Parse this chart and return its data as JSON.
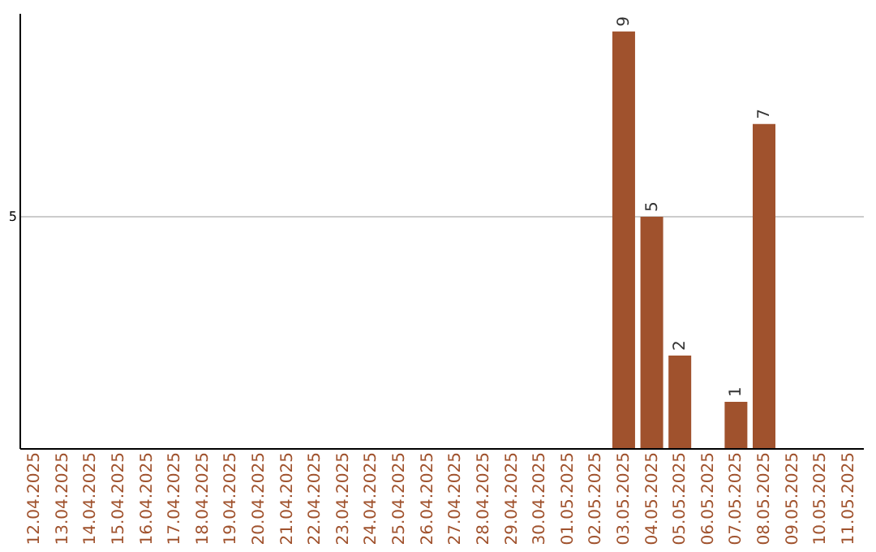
{
  "chart_data": {
    "type": "bar",
    "categories": [
      "12.04.2025",
      "13.04.2025",
      "14.04.2025",
      "15.04.2025",
      "16.04.2025",
      "17.04.2025",
      "18.04.2025",
      "19.04.2025",
      "20.04.2025",
      "21.04.2025",
      "22.04.2025",
      "23.04.2025",
      "24.04.2025",
      "25.04.2025",
      "26.04.2025",
      "27.04.2025",
      "28.04.2025",
      "29.04.2025",
      "30.04.2025",
      "01.05.2025",
      "02.05.2025",
      "03.05.2025",
      "04.05.2025",
      "05.05.2025",
      "06.05.2025",
      "07.05.2025",
      "08.05.2025",
      "09.05.2025",
      "10.05.2025",
      "11.05.2025"
    ],
    "values": [
      null,
      null,
      null,
      null,
      null,
      null,
      null,
      null,
      null,
      null,
      null,
      null,
      null,
      null,
      null,
      null,
      null,
      null,
      null,
      null,
      null,
      9,
      5,
      2,
      null,
      1,
      7,
      null,
      null,
      null
    ],
    "color": "#a0522d",
    "ylim": [
      0,
      9.4
    ],
    "yticks": [
      5
    ],
    "grid": "y",
    "data_labels": true
  }
}
